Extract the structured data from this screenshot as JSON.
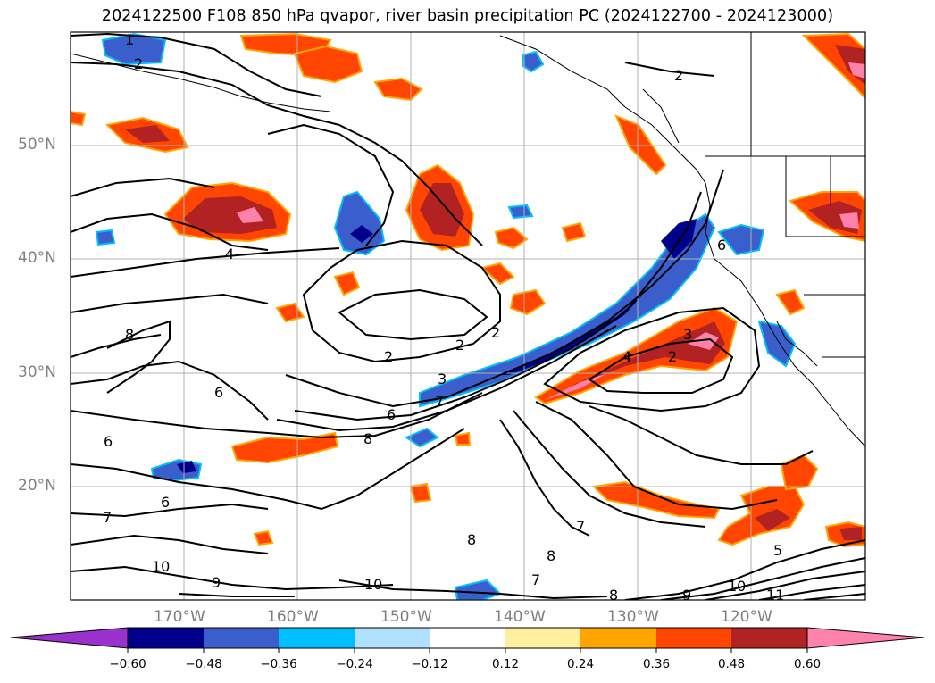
{
  "title": "2024122500 F108 850 hPa qvapor, river basin precipitation PC (2024122700 - 2024123000)",
  "map": {
    "projection": "mercator",
    "lon_range": [
      -180,
      -110
    ],
    "lat_range": [
      10,
      60
    ],
    "gridlines": true,
    "lat_labels": [
      "50°N",
      "40°N",
      "30°N",
      "20°N"
    ],
    "lon_labels": [
      "170°W",
      "160°W",
      "150°W",
      "140°W",
      "130°W",
      "120°W"
    ],
    "contour_variable": "850 hPa qvapor",
    "contour_labels": [
      "1",
      "2",
      "2",
      "2",
      "2",
      "2",
      "2",
      "3",
      "3",
      "4",
      "4",
      "5",
      "6",
      "6",
      "6",
      "6",
      "6",
      "7",
      "7",
      "7",
      "7",
      "8",
      "8",
      "8",
      "8",
      "8",
      "9",
      "9",
      "10",
      "10",
      "10",
      "11"
    ]
  },
  "colorbar": {
    "tick_labels": [
      "−0.60",
      "−0.48",
      "−0.36",
      "−0.24",
      "−0.12",
      "0.12",
      "0.24",
      "0.36",
      "0.48",
      "0.60"
    ],
    "colors": [
      "#9932cc",
      "#00008b",
      "#3a5fcd",
      "#00bfff",
      "#b0e2ff",
      "#ffffff",
      "#fff0a0",
      "#ffa500",
      "#ff4500",
      "#b22222",
      "#ff82ab"
    ],
    "extend": "both"
  }
}
